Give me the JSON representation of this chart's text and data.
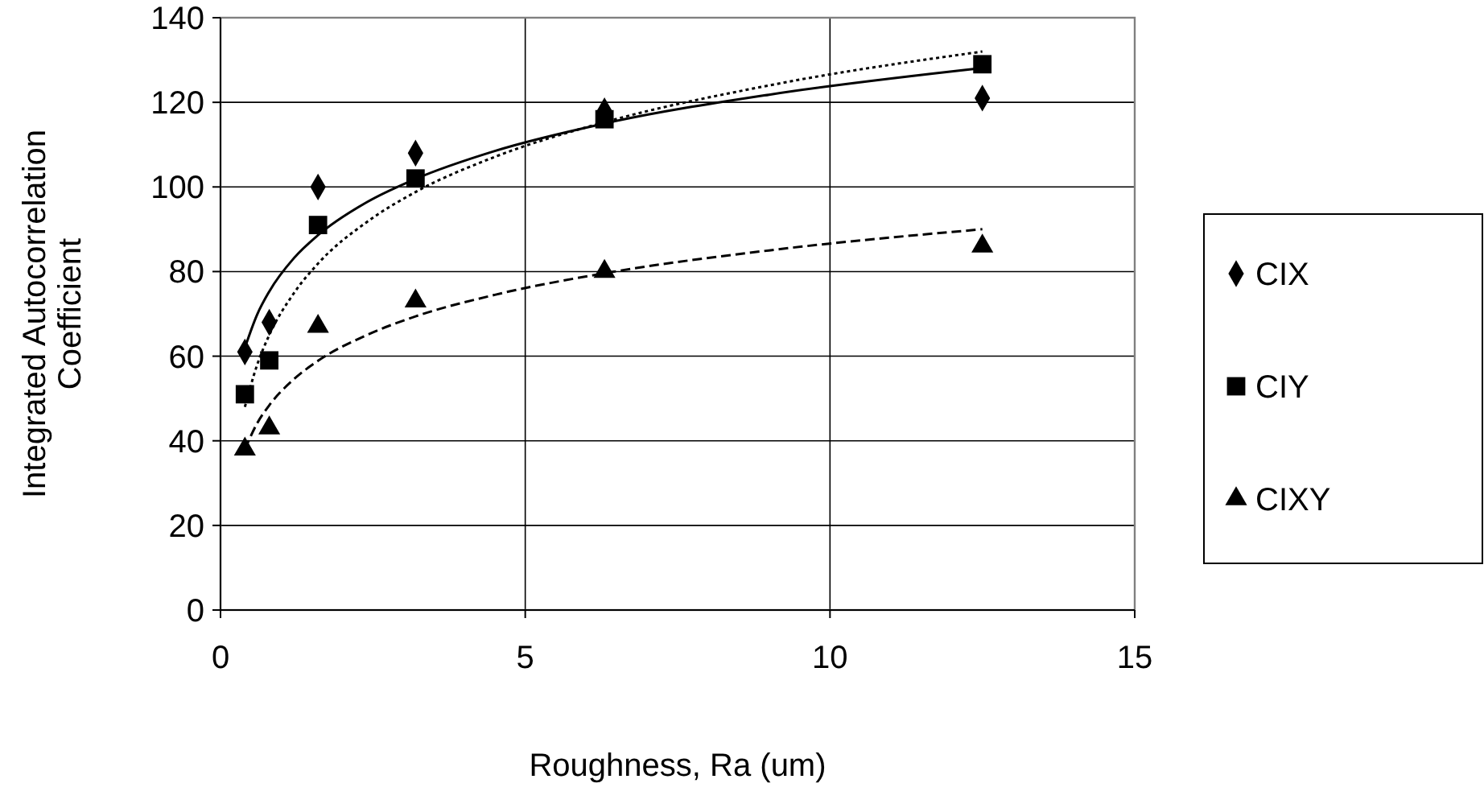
{
  "chart_data": {
    "type": "scatter",
    "xlabel": "Roughness, Ra (um)",
    "ylabel": "Integrated Autocorrelation Coefficient",
    "x": [
      0.4,
      0.8,
      1.6,
      3.2,
      6.3,
      12.5
    ],
    "xlim": [
      0,
      15
    ],
    "xticks": [
      0,
      5,
      10,
      15
    ],
    "ylim": [
      0,
      140
    ],
    "yticks": [
      0,
      20,
      40,
      60,
      80,
      100,
      120,
      140
    ],
    "grid": true,
    "legend": "right",
    "series": [
      {
        "name": "CIX",
        "color": "#000000",
        "marker": "diamond",
        "values": [
          61,
          68,
          100,
          108,
          118,
          121
        ]
      },
      {
        "name": "CIY",
        "color": "#000000",
        "marker": "square",
        "values": [
          51,
          59,
          91,
          102,
          116,
          129
        ]
      },
      {
        "name": "CIXY",
        "color": "#000000",
        "marker": "triangle",
        "values": [
          38,
          43,
          67,
          73,
          80,
          86
        ]
      },
      {
        "type": "line",
        "color": "#000000",
        "line_style": "solid",
        "marker": "none",
        "x": [
          0.4,
          0.6,
          0.8,
          1.2,
          1.6,
          2.4,
          3.2,
          4.5,
          6.3,
          9,
          12.5
        ],
        "values": [
          62,
          69.8,
          75.3,
          83.1,
          88.6,
          96.4,
          101.9,
          108.5,
          115,
          121.8,
          128.1
        ]
      },
      {
        "type": "line",
        "color": "#000000",
        "line_style": "dotted",
        "marker": "none",
        "x": [
          0.4,
          0.6,
          0.8,
          1.2,
          1.6,
          2.4,
          3.2,
          4.5,
          6.3,
          9,
          12.5
        ],
        "values": [
          48,
          57.9,
          65,
          74.8,
          81.9,
          91.7,
          98.8,
          107.1,
          115.3,
          124,
          132
        ]
      },
      {
        "type": "line",
        "color": "#000000",
        "line_style": "dashed",
        "marker": "none",
        "x": [
          0.4,
          0.6,
          0.8,
          1.2,
          1.6,
          2.4,
          3.2,
          4.5,
          6.3,
          9,
          12.5
        ],
        "values": [
          38,
          44.1,
          48.4,
          54.5,
          58.9,
          65,
          69.4,
          74.5,
          79.6,
          85,
          90
        ]
      }
    ]
  }
}
